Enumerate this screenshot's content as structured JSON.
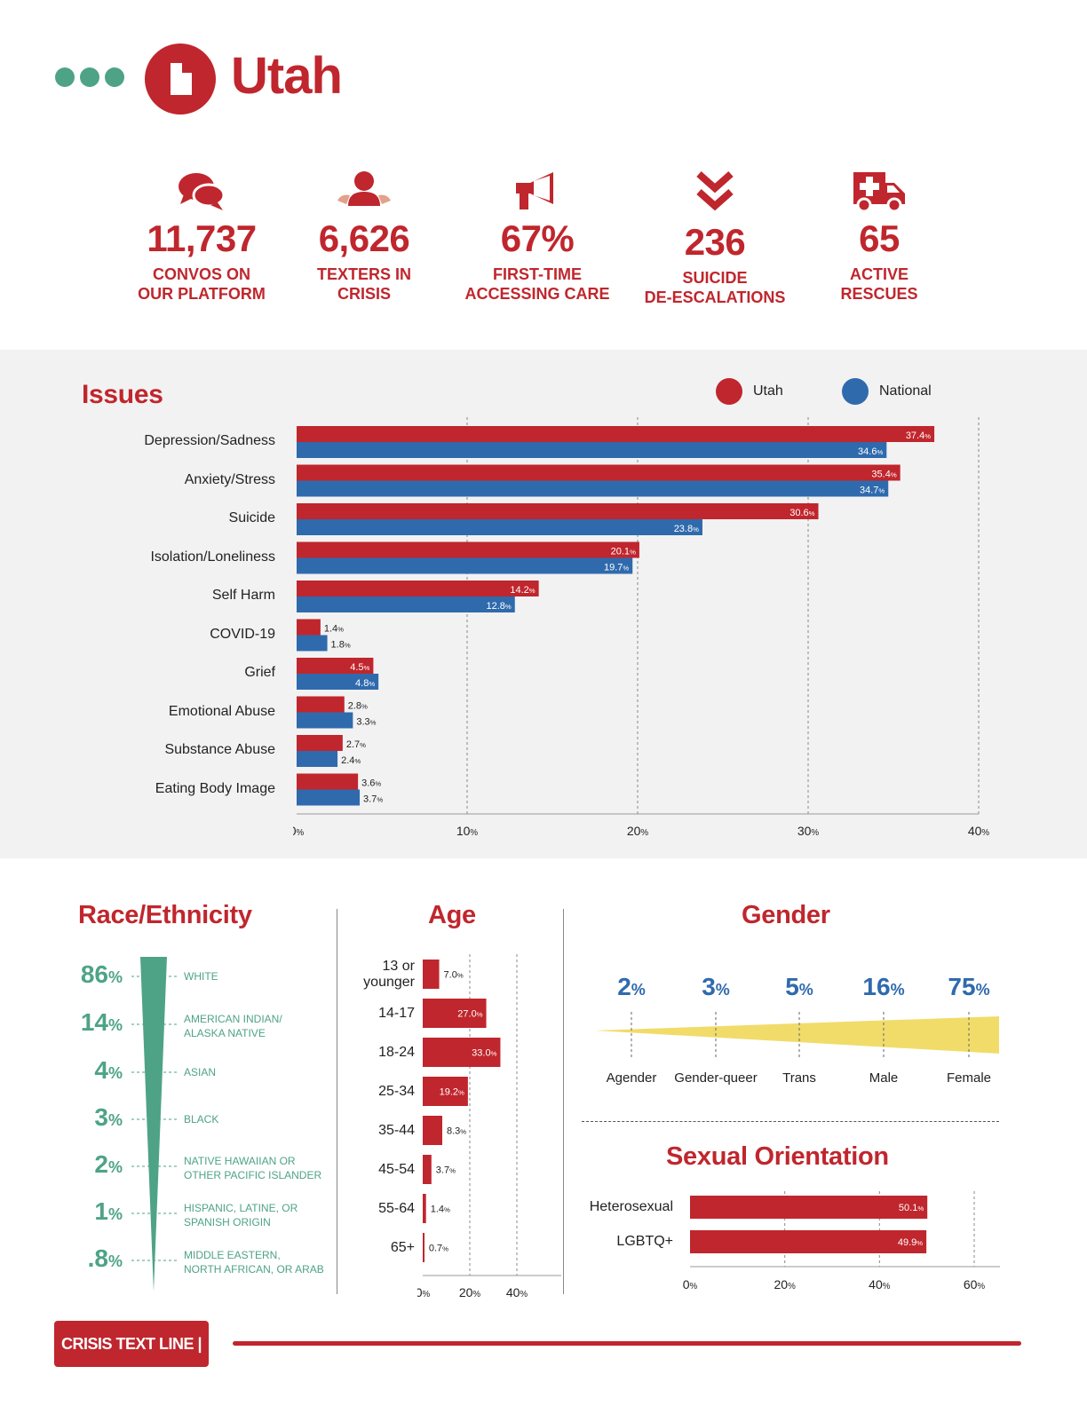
{
  "header": {
    "title": "Utah"
  },
  "stats": [
    {
      "icon": "chat-bubbles-icon",
      "value": "11,737",
      "label_line1": "CONVOS ON",
      "label_line2": "OUR PLATFORM"
    },
    {
      "icon": "person-icon",
      "value": "6,626",
      "label_line1": "TEXTERS IN",
      "label_line2": "CRISIS"
    },
    {
      "icon": "megaphone-icon",
      "value": "67%",
      "label_line1": "FIRST-TIME",
      "label_line2": "ACCESSING CARE"
    },
    {
      "icon": "double-chevron-down-icon",
      "value": "236",
      "label_line1": "SUICIDE",
      "label_line2": "DE-ESCALATIONS"
    },
    {
      "icon": "ambulance-icon",
      "value": "65",
      "label_line1": "ACTIVE",
      "label_line2": "RESCUES"
    }
  ],
  "colors": {
    "red": "#c0262d",
    "blue": "#2f6aad",
    "green": "#4ea386",
    "yellow": "#f1dc6a"
  },
  "chart_data": [
    {
      "type": "bar",
      "orientation": "horizontal",
      "title": "Issues",
      "categories": [
        "Depression/Sadness",
        "Anxiety/Stress",
        "Suicide",
        "Isolation/Loneliness",
        "Self Harm",
        "COVID-19",
        "Grief",
        "Emotional Abuse",
        "Substance Abuse",
        "Eating Body Image"
      ],
      "series": [
        {
          "name": "Utah",
          "color": "#c0262d",
          "values": [
            37.4,
            35.4,
            30.6,
            20.1,
            14.2,
            1.4,
            4.5,
            2.8,
            2.7,
            3.6
          ]
        },
        {
          "name": "National",
          "color": "#2f6aad",
          "values": [
            34.6,
            34.7,
            23.8,
            19.7,
            12.8,
            1.8,
            4.8,
            3.3,
            2.4,
            3.7
          ]
        }
      ],
      "xlim": [
        0,
        40
      ],
      "xticks": [
        "0",
        "10",
        "20",
        "30",
        "40"
      ],
      "tick_suffix": "%",
      "legend": "top-right",
      "grid": true
    },
    {
      "type": "bar",
      "title": "Race/Ethnicity",
      "categories": [
        "WHITE",
        "AMERICAN INDIAN/ ALASKA NATIVE",
        "ASIAN",
        "BLACK",
        "NATIVE HAWAIIAN OR OTHER PACIFIC ISLANDER",
        "HISPANIC, LATINE, OR SPANISH ORIGIN",
        "MIDDLE EASTERN, NORTH AFRICAN, OR ARAB"
      ],
      "label_lines": [
        [
          "WHITE"
        ],
        [
          "AMERICAN INDIAN/",
          "ALASKA NATIVE"
        ],
        [
          "ASIAN"
        ],
        [
          "BLACK"
        ],
        [
          "NATIVE HAWAIIAN OR",
          "OTHER PACIFIC ISLANDER"
        ],
        [
          "HISPANIC, LATINE, OR",
          "SPANISH ORIGIN"
        ],
        [
          "MIDDLE EASTERN,",
          "NORTH AFRICAN, OR ARAB"
        ]
      ],
      "values": [
        86,
        14,
        4,
        3,
        2,
        1,
        0.8
      ],
      "value_labels": [
        "86",
        "14",
        "4",
        "3",
        "2",
        "1",
        ".8"
      ],
      "suffix": "%"
    },
    {
      "type": "bar",
      "orientation": "horizontal",
      "title": "Age",
      "categories": [
        "13 or younger",
        "14-17",
        "18-24",
        "25-34",
        "35-44",
        "45-54",
        "55-64",
        "65+"
      ],
      "label_lines": [
        [
          "13 or",
          "younger"
        ],
        [
          "14-17"
        ],
        [
          "18-24"
        ],
        [
          "25-34"
        ],
        [
          "35-44"
        ],
        [
          "45-54"
        ],
        [
          "55-64"
        ],
        [
          "65+"
        ]
      ],
      "values": [
        7.0,
        27.0,
        33.0,
        19.2,
        8.3,
        3.7,
        1.4,
        0.7
      ],
      "xlim": [
        0,
        40
      ],
      "xticks": [
        "0",
        "20",
        "40"
      ],
      "tick_suffix": "%"
    },
    {
      "type": "area",
      "title": "Gender",
      "categories": [
        "Agender",
        "Gender-queer",
        "Trans",
        "Male",
        "Female"
      ],
      "values": [
        2,
        3,
        5,
        16,
        75
      ],
      "suffix": "%"
    },
    {
      "type": "bar",
      "orientation": "horizontal",
      "title": "Sexual Orientation",
      "categories": [
        "Heterosexual",
        "LGBTQ+"
      ],
      "values": [
        50.1,
        49.9
      ],
      "xlim": [
        0,
        60
      ],
      "xticks": [
        "0",
        "20",
        "40",
        "60"
      ],
      "tick_suffix": "%"
    }
  ],
  "footer": {
    "logo_text": "CRISIS TEXT LINE |"
  }
}
